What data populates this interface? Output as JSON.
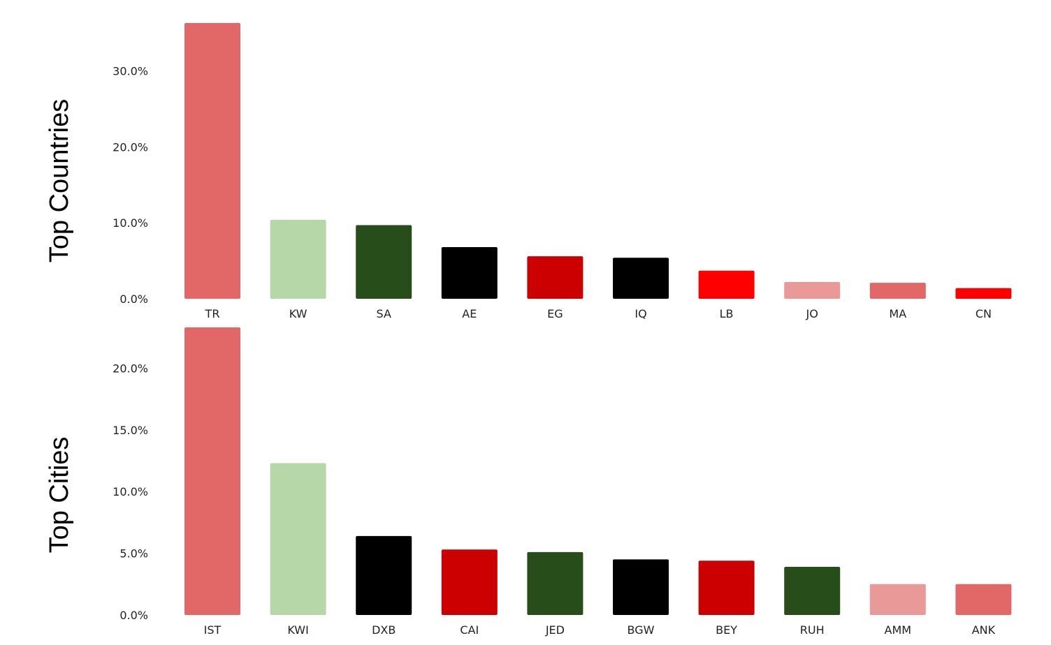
{
  "chart_data": [
    {
      "type": "bar",
      "title": "",
      "row_label": "Top Countries",
      "categories": [
        "TR",
        "KW",
        "SA",
        "AE",
        "EG",
        "IQ",
        "LB",
        "JO",
        "MA",
        "CN"
      ],
      "values": [
        36.3,
        10.4,
        9.7,
        6.8,
        5.6,
        5.4,
        3.7,
        2.2,
        2.1,
        1.4
      ],
      "colors": [
        "#e26868",
        "#b6d7a8",
        "#274e1a",
        "#000000",
        "#cc0000",
        "#000000",
        "#ff0000",
        "#ea9999",
        "#e26868",
        "#ff0000"
      ],
      "yticks": [
        "0.0%",
        "10.0%",
        "20.0%",
        "30.0%"
      ],
      "ytick_values": [
        0,
        10,
        20,
        30
      ],
      "ylim": [
        0,
        36.3
      ],
      "grid": false,
      "legend": "none"
    },
    {
      "type": "bar",
      "title": "",
      "row_label": "Top Cities",
      "categories": [
        "IST",
        "KWI",
        "DXB",
        "CAI",
        "JED",
        "BGW",
        "BEY",
        "RUH",
        "AMM",
        "ANK"
      ],
      "values": [
        23.3,
        12.3,
        6.4,
        5.3,
        5.1,
        4.5,
        4.4,
        3.9,
        2.5,
        2.5
      ],
      "colors": [
        "#e26868",
        "#b6d7a8",
        "#000000",
        "#cc0000",
        "#274e1a",
        "#000000",
        "#cc0000",
        "#274e1a",
        "#ea9999",
        "#e26868"
      ],
      "yticks": [
        "0.0%",
        "5.0%",
        "10.0%",
        "15.0%",
        "20.0%"
      ],
      "ytick_values": [
        0,
        5,
        10,
        15,
        20
      ],
      "ylim": [
        0,
        23.3
      ],
      "grid": false,
      "legend": "none"
    }
  ]
}
